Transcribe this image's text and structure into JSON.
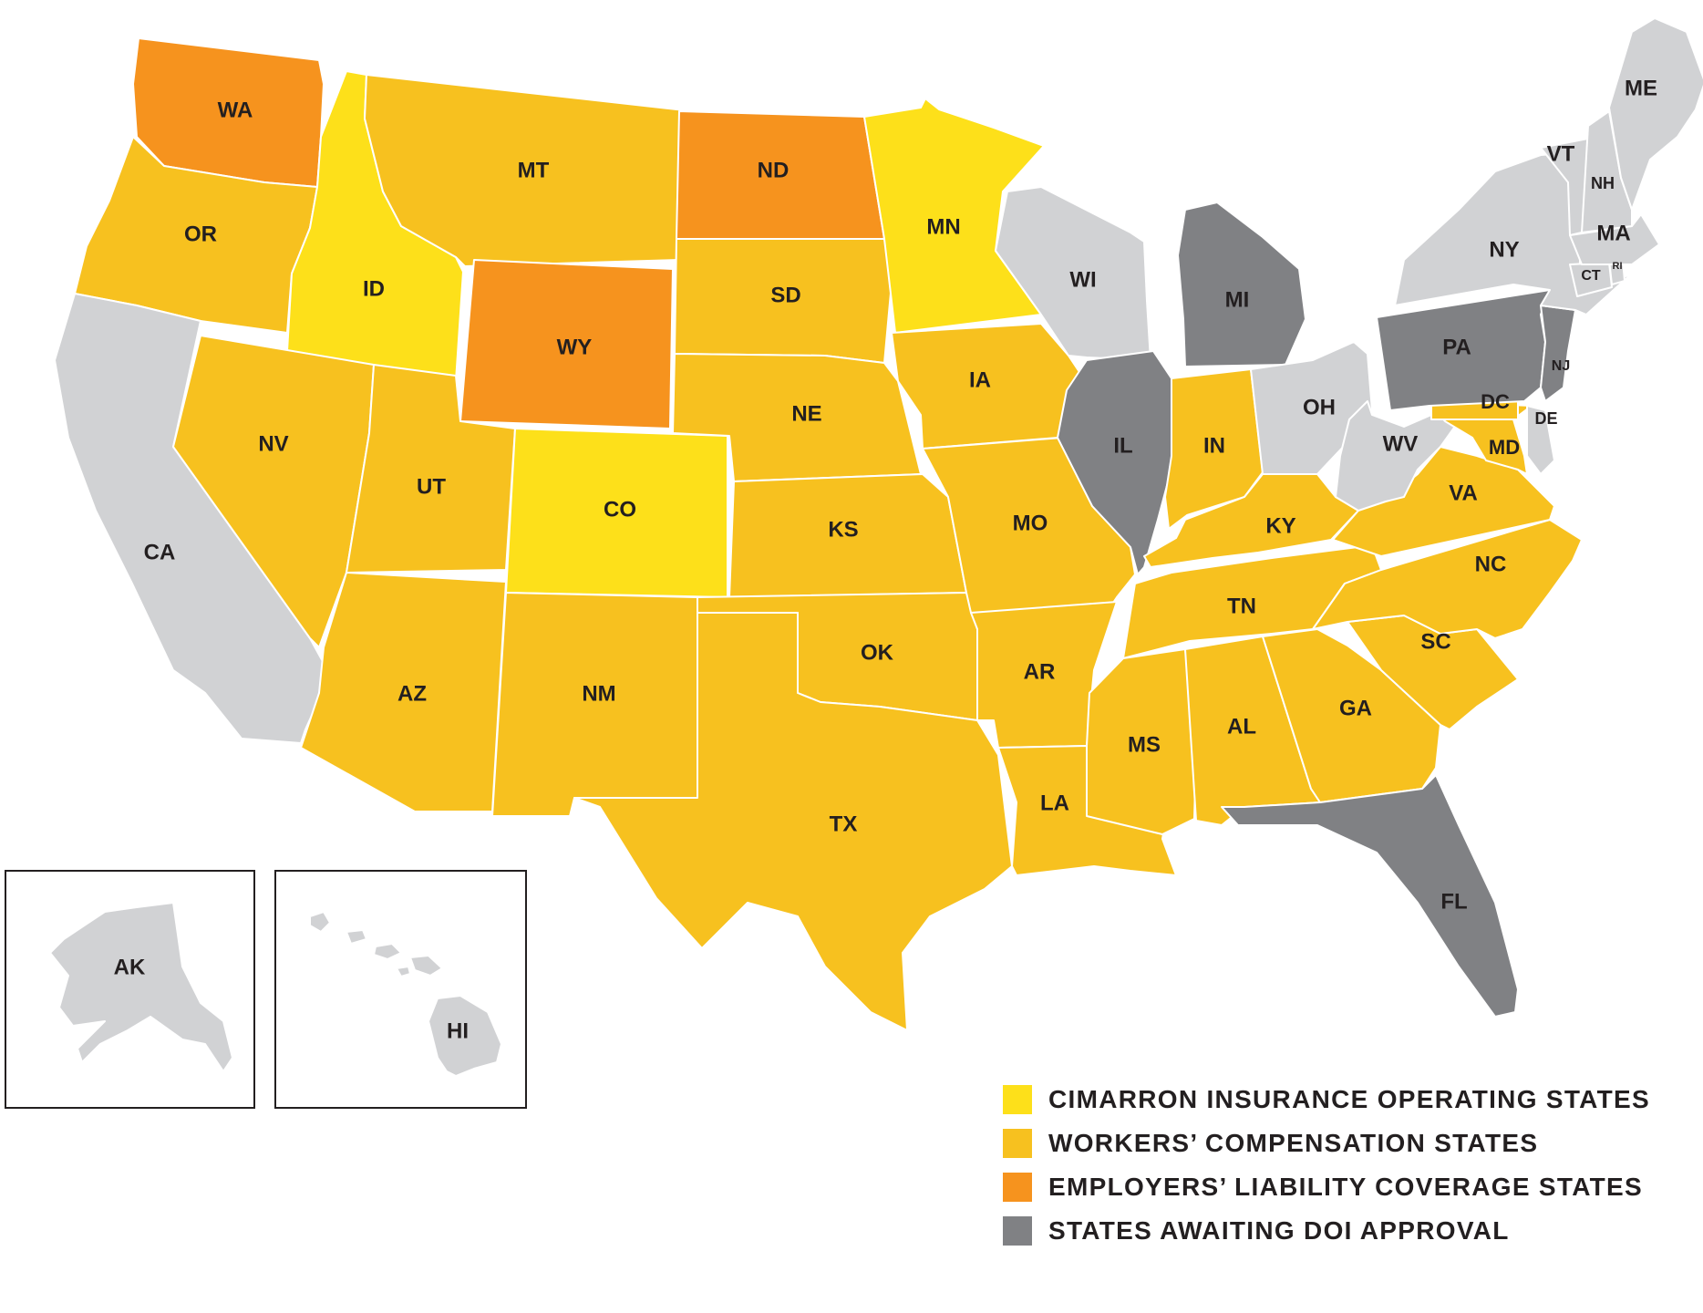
{
  "colors": {
    "cimarron": "#fde01a",
    "workers_comp": "#f7c11f",
    "employers_liability": "#f6931e",
    "awaiting_doi": "#808184",
    "other": "#d1d2d4",
    "label": "#231f20"
  },
  "legend": [
    {
      "category": "cimarron",
      "label": "CIMARRON INSURANCE OPERATING STATES"
    },
    {
      "category": "workers_comp",
      "label": "WORKERS’ COMPENSATION STATES"
    },
    {
      "category": "employers_liability",
      "label": "EMPLOYERS’ LIABILITY COVERAGE STATES"
    },
    {
      "category": "awaiting_doi",
      "label": "STATES AWAITING DOI APPROVAL"
    }
  ],
  "states": [
    {
      "code": "WA",
      "category": "employers_liability"
    },
    {
      "code": "OR",
      "category": "workers_comp"
    },
    {
      "code": "CA",
      "category": "other"
    },
    {
      "code": "ID",
      "category": "cimarron"
    },
    {
      "code": "NV",
      "category": "workers_comp"
    },
    {
      "code": "MT",
      "category": "workers_comp"
    },
    {
      "code": "WY",
      "category": "employers_liability"
    },
    {
      "code": "UT",
      "category": "workers_comp"
    },
    {
      "code": "AZ",
      "category": "workers_comp"
    },
    {
      "code": "CO",
      "category": "cimarron"
    },
    {
      "code": "NM",
      "category": "workers_comp"
    },
    {
      "code": "ND",
      "category": "employers_liability"
    },
    {
      "code": "SD",
      "category": "workers_comp"
    },
    {
      "code": "NE",
      "category": "workers_comp"
    },
    {
      "code": "KS",
      "category": "workers_comp"
    },
    {
      "code": "OK",
      "category": "workers_comp"
    },
    {
      "code": "TX",
      "category": "workers_comp"
    },
    {
      "code": "MN",
      "category": "cimarron"
    },
    {
      "code": "IA",
      "category": "workers_comp"
    },
    {
      "code": "MO",
      "category": "workers_comp"
    },
    {
      "code": "AR",
      "category": "workers_comp"
    },
    {
      "code": "LA",
      "category": "workers_comp"
    },
    {
      "code": "WI",
      "category": "other"
    },
    {
      "code": "IL",
      "category": "awaiting_doi"
    },
    {
      "code": "MI",
      "category": "awaiting_doi"
    },
    {
      "code": "IN",
      "category": "workers_comp"
    },
    {
      "code": "OH",
      "category": "other"
    },
    {
      "code": "KY",
      "category": "workers_comp"
    },
    {
      "code": "TN",
      "category": "workers_comp"
    },
    {
      "code": "MS",
      "category": "workers_comp"
    },
    {
      "code": "AL",
      "category": "workers_comp"
    },
    {
      "code": "GA",
      "category": "workers_comp"
    },
    {
      "code": "FL",
      "category": "awaiting_doi"
    },
    {
      "code": "SC",
      "category": "workers_comp"
    },
    {
      "code": "NC",
      "category": "workers_comp"
    },
    {
      "code": "VA",
      "category": "workers_comp"
    },
    {
      "code": "WV",
      "category": "other"
    },
    {
      "code": "MD",
      "category": "workers_comp"
    },
    {
      "code": "DC",
      "category": "workers_comp"
    },
    {
      "code": "DE",
      "category": "other"
    },
    {
      "code": "PA",
      "category": "awaiting_doi"
    },
    {
      "code": "NJ",
      "category": "awaiting_doi"
    },
    {
      "code": "NY",
      "category": "other"
    },
    {
      "code": "CT",
      "category": "other"
    },
    {
      "code": "RI",
      "category": "other"
    },
    {
      "code": "MA",
      "category": "other"
    },
    {
      "code": "VT",
      "category": "other"
    },
    {
      "code": "NH",
      "category": "other"
    },
    {
      "code": "ME",
      "category": "other"
    },
    {
      "code": "AK",
      "category": "other"
    },
    {
      "code": "HI",
      "category": "other"
    }
  ]
}
